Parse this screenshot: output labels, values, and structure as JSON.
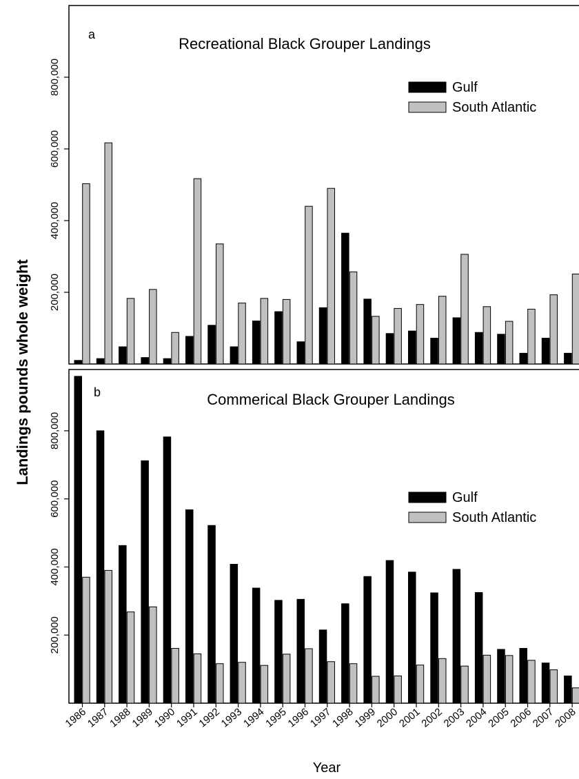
{
  "figure": {
    "ylabel": "Landings pounds whole weight",
    "xlabel": "Year"
  },
  "chart_data": [
    {
      "type": "bar",
      "panel_letter": "a",
      "title": "Recreational Black Grouper Landings",
      "categories": [
        "1986",
        "1987",
        "1988",
        "1989",
        "1990",
        "1991",
        "1992",
        "1993",
        "1994",
        "1995",
        "1996",
        "1997",
        "1998",
        "1999",
        "2000",
        "2001",
        "2002",
        "2003",
        "2004",
        "2005",
        "2006",
        "2007",
        "2008"
      ],
      "series": [
        {
          "name": "Gulf",
          "color": "#000000",
          "values": [
            10000,
            15000,
            48000,
            18000,
            15000,
            77000,
            108000,
            48000,
            120000,
            146000,
            62000,
            157000,
            365000,
            181000,
            85000,
            92000,
            72000,
            129000,
            88000,
            83000,
            30000,
            72000,
            30000
          ]
        },
        {
          "name": "South Atlantic",
          "color": "#c0c0c0",
          "values": [
            503000,
            617000,
            183000,
            208000,
            88000,
            517000,
            335000,
            170000,
            183000,
            180000,
            440000,
            490000,
            257000,
            133000,
            155000,
            166000,
            189000,
            306000,
            160000,
            119000,
            153000,
            193000,
            251000
          ]
        }
      ],
      "ylim": [
        0,
        1000000
      ],
      "yticks": [
        200000,
        400000,
        600000,
        800000
      ],
      "ytick_labels": [
        "200,000",
        "400,000",
        "600,000",
        "800,000"
      ],
      "legend": "right"
    },
    {
      "type": "bar",
      "panel_letter": "b",
      "title": "Commerical Black Grouper Landings",
      "categories": [
        "1986",
        "1987",
        "1988",
        "1989",
        "1990",
        "1991",
        "1992",
        "1993",
        "1994",
        "1995",
        "1996",
        "1997",
        "1998",
        "1999",
        "2000",
        "2001",
        "2002",
        "2003",
        "2004",
        "2005",
        "2006",
        "2007",
        "2008"
      ],
      "series": [
        {
          "name": "Gulf",
          "color": "#000000",
          "values": [
            960000,
            800000,
            463000,
            712000,
            782000,
            568000,
            522000,
            408000,
            338000,
            302000,
            305000,
            215000,
            292000,
            372000,
            419000,
            385000,
            324000,
            393000,
            325000,
            158000,
            161000,
            118000,
            80000
          ]
        },
        {
          "name": "South Atlantic",
          "color": "#c0c0c0",
          "values": [
            370000,
            390000,
            268000,
            283000,
            161000,
            145000,
            116000,
            120000,
            111000,
            144000,
            160000,
            122000,
            116000,
            79000,
            80000,
            112000,
            131000,
            109000,
            141000,
            140000,
            126000,
            98000,
            45000
          ]
        }
      ],
      "ylim": [
        0,
        980000
      ],
      "yticks": [
        200000,
        400000,
        600000,
        800000
      ],
      "ytick_labels": [
        "200,000",
        "400,000",
        "600,000",
        "800,000"
      ],
      "legend": "right"
    }
  ]
}
